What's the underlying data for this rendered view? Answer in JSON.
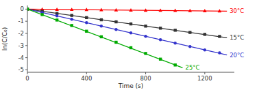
{
  "chart_data": {
    "type": "scatter",
    "xlabel": "Time (s)",
    "ylabel": "ln(C/C₀)",
    "xlim": [
      0,
      1400
    ],
    "ylim": [
      -5.2,
      0.3
    ],
    "xticks": [
      0,
      400,
      800,
      1200
    ],
    "yticks": [
      0,
      -1,
      -2,
      -3,
      -4,
      -5
    ],
    "grid": false,
    "series": [
      {
        "name": "30°C",
        "color": "#ff0000",
        "marker": "triangle",
        "x": [
          0,
          100,
          200,
          300,
          400,
          500,
          600,
          700,
          800,
          900,
          1000,
          1100,
          1200,
          1300
        ],
        "values": [
          0.0,
          -0.01,
          -0.02,
          -0.03,
          -0.04,
          -0.055,
          -0.065,
          -0.075,
          -0.09,
          -0.1,
          -0.11,
          -0.125,
          -0.135,
          -0.15
        ],
        "trend": {
          "x": [
            0,
            1350
          ],
          "values": [
            0,
            -0.1755
          ]
        }
      },
      {
        "name": "15°C",
        "color": "#333333",
        "marker": "square",
        "x": [
          0,
          100,
          200,
          300,
          400,
          500,
          600,
          700,
          800,
          900,
          1000,
          1100,
          1200,
          1300
        ],
        "values": [
          0.0,
          -0.18,
          -0.36,
          -0.52,
          -0.7,
          -0.88,
          -1.05,
          -1.22,
          -1.4,
          -1.57,
          -1.74,
          -1.92,
          -2.08,
          -2.25
        ],
        "trend": {
          "x": [
            0,
            1350
          ],
          "values": [
            0,
            -2.3625
          ]
        }
      },
      {
        "name": "20°C",
        "color": "#3333cc",
        "marker": "circle",
        "x": [
          0,
          100,
          200,
          300,
          400,
          500,
          600,
          700,
          800,
          900,
          1000,
          1100,
          1200,
          1300
        ],
        "values": [
          0.0,
          -0.28,
          -0.56,
          -0.84,
          -1.12,
          -1.4,
          -1.68,
          -1.96,
          -2.24,
          -2.52,
          -2.8,
          -3.08,
          -3.36,
          -3.6
        ],
        "trend": {
          "x": [
            0,
            1350
          ],
          "values": [
            0,
            -3.78
          ]
        }
      },
      {
        "name": "25°C",
        "color": "#00aa00",
        "marker": "square",
        "x": [
          0,
          100,
          200,
          300,
          400,
          500,
          600,
          700,
          800,
          900,
          1000
        ],
        "values": [
          0.0,
          -0.45,
          -0.9,
          -1.35,
          -1.82,
          -2.28,
          -2.73,
          -3.18,
          -3.65,
          -4.12,
          -4.6
        ],
        "trend": {
          "x": [
            0,
            1050
          ],
          "values": [
            0,
            -4.83
          ]
        }
      }
    ]
  }
}
